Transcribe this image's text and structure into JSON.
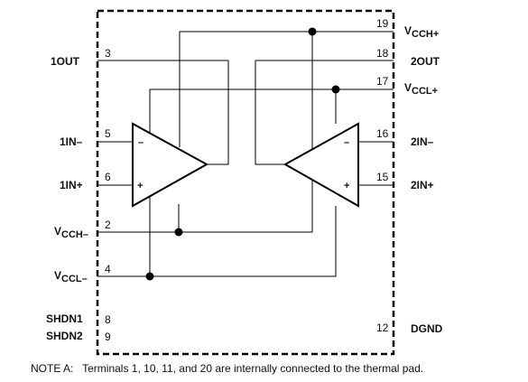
{
  "pins_left": [
    {
      "name": "1OUT",
      "number": "3"
    },
    {
      "name": "1IN–",
      "number": "5"
    },
    {
      "name": "1IN+",
      "number": "6"
    },
    {
      "name_main": "V",
      "name_sub": "CCH–",
      "number": "2"
    },
    {
      "name_main": "V",
      "name_sub": "CCL–",
      "number": "4"
    },
    {
      "name": "SHDN1",
      "number": "8"
    },
    {
      "name": "SHDN2",
      "number": "9"
    }
  ],
  "pins_right": [
    {
      "name_main": "V",
      "name_sub": "CCH+",
      "number": "19"
    },
    {
      "name": "2OUT",
      "number": "18"
    },
    {
      "name_main": "V",
      "name_sub": "CCL+",
      "number": "17"
    },
    {
      "name": "2IN–",
      "number": "16"
    },
    {
      "name": "2IN+",
      "number": "15"
    },
    {
      "name": "DGND",
      "number": "12"
    }
  ],
  "amp_signs": {
    "minus": "–",
    "plus": "+"
  },
  "note": "NOTE A:   Terminals 1, 10, 11, and 20 are internally connected to the thermal pad."
}
